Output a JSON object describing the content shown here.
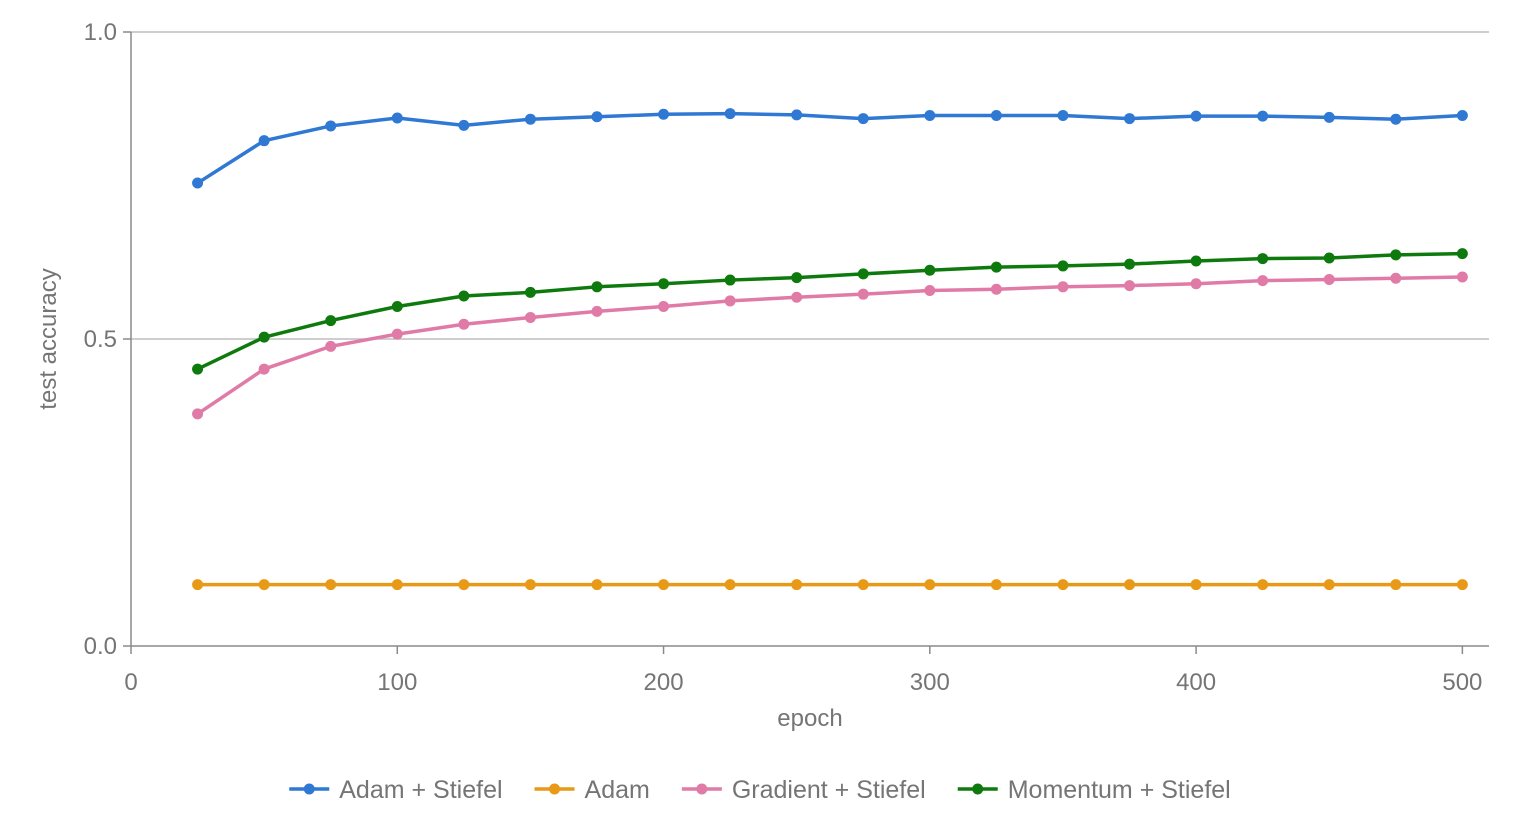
{
  "chart_data": {
    "type": "line",
    "title": "",
    "xlabel": "epoch",
    "ylabel": "test accuracy",
    "xlim": [
      0,
      510
    ],
    "ylim": [
      0,
      1
    ],
    "x_ticks": [
      "0",
      "100",
      "200",
      "300",
      "400",
      "500"
    ],
    "y_ticks": [
      "0.0",
      "0.5",
      "1.0"
    ],
    "grid": true,
    "legend_position": "bottom",
    "x": [
      25,
      50,
      75,
      100,
      125,
      150,
      175,
      200,
      225,
      250,
      275,
      300,
      325,
      350,
      375,
      400,
      425,
      450,
      475,
      500
    ],
    "series": [
      {
        "name": "Adam + Stiefel",
        "color": "#2f78d3",
        "values": [
          0.754,
          0.823,
          0.847,
          0.86,
          0.848,
          0.858,
          0.862,
          0.866,
          0.867,
          0.865,
          0.859,
          0.864,
          0.864,
          0.864,
          0.859,
          0.863,
          0.863,
          0.861,
          0.858,
          0.864
        ]
      },
      {
        "name": "Adam",
        "color": "#e89a16",
        "values": [
          0.1,
          0.1,
          0.1,
          0.1,
          0.1,
          0.1,
          0.1,
          0.1,
          0.1,
          0.1,
          0.1,
          0.1,
          0.1,
          0.1,
          0.1,
          0.1,
          0.1,
          0.1,
          0.1,
          0.1
        ]
      },
      {
        "name": "Gradient + Stiefel",
        "color": "#e07aa6",
        "values": [
          0.378,
          0.451,
          0.488,
          0.508,
          0.524,
          0.535,
          0.545,
          0.553,
          0.562,
          0.568,
          0.573,
          0.579,
          0.581,
          0.585,
          0.587,
          0.59,
          0.595,
          0.597,
          0.599,
          0.601
        ]
      },
      {
        "name": "Momentum + Stiefel",
        "color": "#0e7a0e",
        "values": [
          0.451,
          0.503,
          0.53,
          0.553,
          0.57,
          0.576,
          0.585,
          0.59,
          0.596,
          0.6,
          0.606,
          0.612,
          0.617,
          0.619,
          0.622,
          0.627,
          0.631,
          0.632,
          0.637,
          0.639
        ]
      }
    ]
  }
}
